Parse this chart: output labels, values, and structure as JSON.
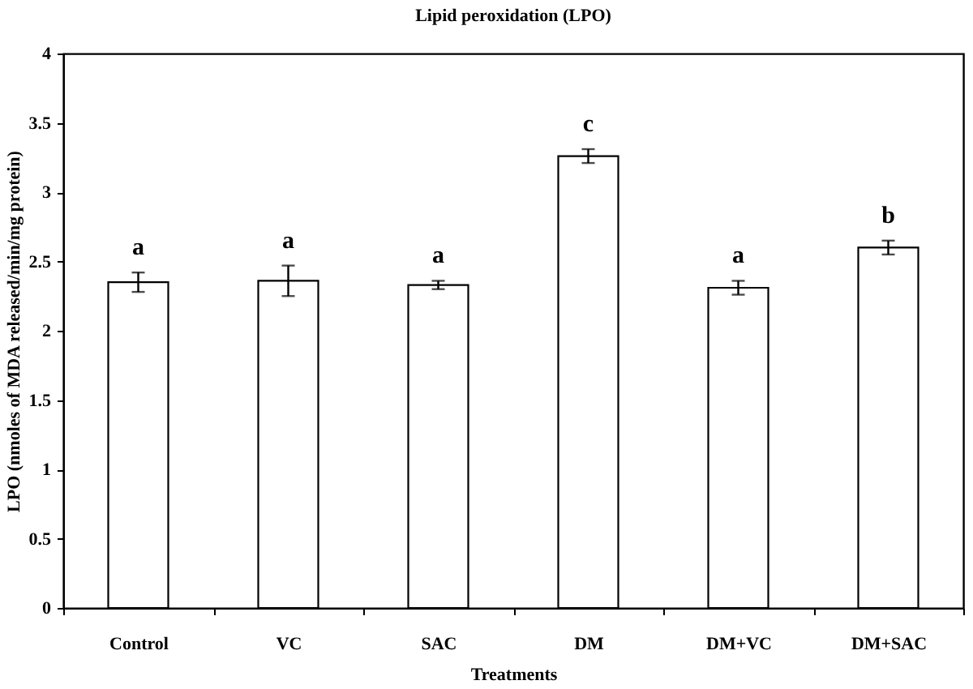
{
  "chart_data": {
    "type": "bar",
    "title": "Lipid peroxidation (LPO)",
    "xlabel": "Treatments",
    "ylabel": "LPO (nmoles of MDA released/min/mg protein)",
    "categories": [
      "Control",
      "VC",
      "SAC",
      "DM",
      "DM+VC",
      "DM+SAC"
    ],
    "values": [
      2.35,
      2.36,
      2.33,
      3.26,
      2.31,
      2.6
    ],
    "errors": [
      0.07,
      0.11,
      0.03,
      0.05,
      0.05,
      0.05
    ],
    "color": "#ffffff",
    "ylim": [
      0,
      4
    ],
    "yticks": [
      0,
      0.5,
      1,
      1.5,
      2,
      2.5,
      3,
      3.5,
      4
    ],
    "annotations": [
      "a",
      "a",
      "a",
      "c",
      "a",
      "b"
    ]
  }
}
